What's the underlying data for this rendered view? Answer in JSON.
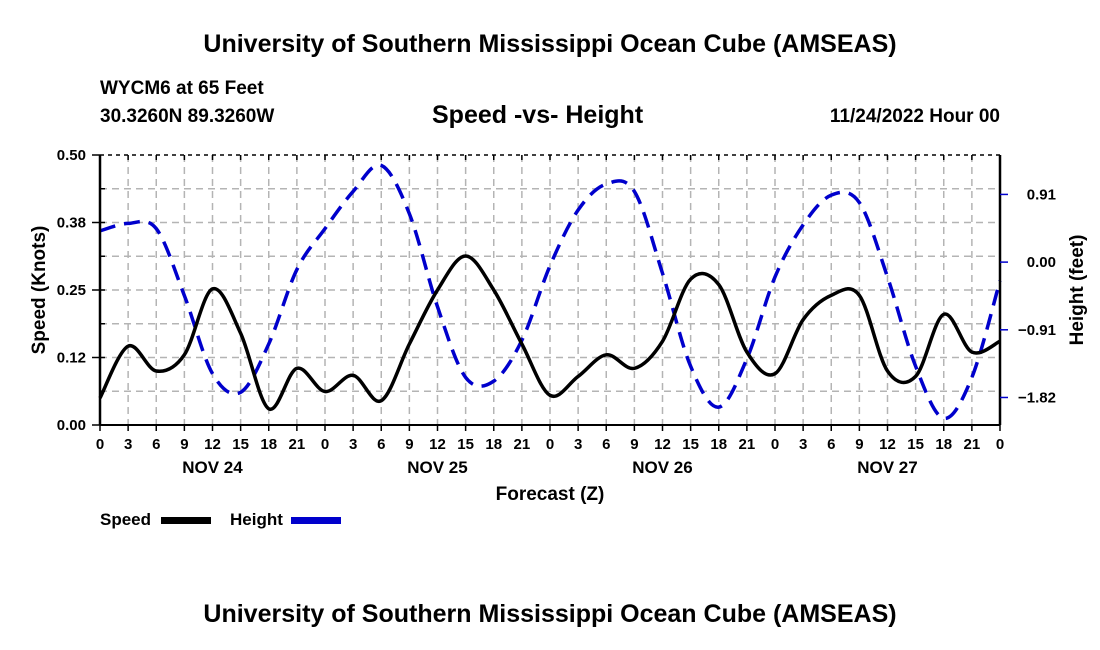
{
  "header": {
    "title": "University of Southern Mississippi Ocean Cube (AMSEAS)",
    "station": "WYCM6 at 65 Feet",
    "coords": "30.3260N  89.3260W",
    "chart_title": "Speed -vs- Height",
    "datetime": "11/24/2022 Hour 00"
  },
  "footer": {
    "title": "University of Southern Mississippi Ocean Cube (AMSEAS)"
  },
  "colors": {
    "speed": "#000000",
    "height": "#0000cc",
    "grid": "#b4b4b4"
  },
  "legend": [
    {
      "label": "Speed",
      "style": "solid",
      "color": "#000000"
    },
    {
      "label": "Height",
      "style": "dashed",
      "color": "#0000cc"
    }
  ],
  "chart_data": {
    "type": "line",
    "title": "Speed -vs- Height",
    "xlabel": "Forecast (Z)",
    "ylabel": "Speed (Knots)",
    "y2label": "Height (feet)",
    "x_hours": [
      0,
      3,
      6,
      9,
      12,
      15,
      18,
      21,
      24,
      27,
      30,
      33,
      36,
      39,
      42,
      45,
      48,
      51,
      54,
      57,
      60,
      63,
      66,
      69,
      72,
      75,
      78,
      81,
      84,
      87,
      90,
      93,
      96
    ],
    "xlim": [
      0,
      96
    ],
    "x_tick_labels": [
      "0",
      "3",
      "6",
      "9",
      "12",
      "15",
      "18",
      "21",
      "0",
      "3",
      "6",
      "9",
      "12",
      "15",
      "18",
      "21",
      "0",
      "3",
      "6",
      "9",
      "12",
      "15",
      "18",
      "21",
      "0",
      "3",
      "6",
      "9",
      "12",
      "15",
      "18",
      "21",
      "0"
    ],
    "day_labels": [
      {
        "label": "NOV 24",
        "center_hour": 12
      },
      {
        "label": "NOV 25",
        "center_hour": 36
      },
      {
        "label": "NOV 26",
        "center_hour": 60
      },
      {
        "label": "NOV 27",
        "center_hour": 84
      }
    ],
    "ylim": [
      0,
      0.5
    ],
    "y_ticks": [
      0.0,
      0.125,
      0.25,
      0.375,
      0.5
    ],
    "y_tick_labels": [
      "0.00",
      "0.12",
      "0.25",
      "0.38",
      "0.50"
    ],
    "y2lim": [
      -2.19,
      1.44
    ],
    "y2_ticks": [
      0.91,
      0.0,
      -0.91,
      -1.82
    ],
    "y2_tick_labels": [
      "0.91",
      "0.00",
      "−0.91",
      "−1.82"
    ],
    "grid": true,
    "legend_position": "bottom-left",
    "series": [
      {
        "name": "Speed",
        "axis": "left",
        "values": [
          0.05,
          0.146,
          0.1,
          0.13,
          0.252,
          0.17,
          0.03,
          0.105,
          0.062,
          0.092,
          0.045,
          0.15,
          0.25,
          0.313,
          0.25,
          0.15,
          0.055,
          0.09,
          0.13,
          0.105,
          0.155,
          0.27,
          0.26,
          0.135,
          0.095,
          0.195,
          0.24,
          0.24,
          0.1,
          0.09,
          0.205,
          0.135,
          0.155
        ]
      },
      {
        "name": "Height",
        "axis": "right",
        "values": [
          0.42,
          0.52,
          0.45,
          -0.45,
          -1.5,
          -1.75,
          -1.1,
          -0.1,
          0.45,
          0.95,
          1.3,
          0.65,
          -0.6,
          -1.55,
          -1.6,
          -1.05,
          -0.05,
          0.7,
          1.05,
          0.95,
          -0.15,
          -1.4,
          -1.95,
          -1.3,
          -0.2,
          0.5,
          0.9,
          0.8,
          -0.2,
          -1.4,
          -2.1,
          -1.55,
          -0.25
        ]
      }
    ]
  }
}
